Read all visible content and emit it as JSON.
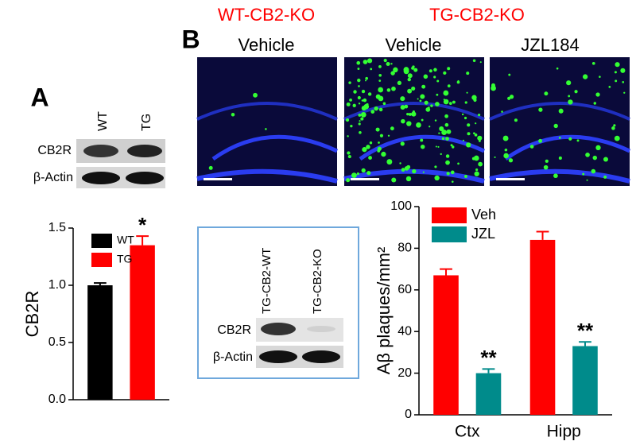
{
  "panels": {
    "a": "A",
    "b": "B"
  },
  "image_labels": {
    "groups": [
      "WT-CB2-KO",
      "TG-CB2-KO"
    ],
    "conditions": [
      "Vehicle",
      "Vehicle",
      "JZL184"
    ]
  },
  "blot_a": {
    "lanes": [
      "WT",
      "TG"
    ],
    "rows": [
      "CB2R",
      "β-Actin"
    ]
  },
  "blot_b": {
    "lanes": [
      "TG-CB2-WT",
      "TG-CB2-KO"
    ],
    "rows": [
      "CB2R",
      "β-Actin"
    ]
  },
  "chart_data": [
    {
      "type": "bar",
      "ylabel": "CB2R",
      "categories": [
        null
      ],
      "series": [
        {
          "name": "WT",
          "color": "#000000",
          "values": [
            1.0
          ],
          "errors": [
            0.02
          ]
        },
        {
          "name": "TG",
          "color": "#ff0000",
          "values": [
            1.35
          ],
          "errors": [
            0.08
          ],
          "annotations": [
            "*"
          ]
        }
      ],
      "ylim": [
        0,
        1.5
      ],
      "yticks": [
        {
          "value": 0,
          "label": "0.0"
        },
        {
          "value": 0.5,
          "label": "0.5"
        },
        {
          "value": 1,
          "label": "1.0"
        },
        {
          "value": 1.5,
          "label": "1.5"
        }
      ]
    },
    {
      "type": "bar",
      "ylabel": "Aβ plaques/mm²",
      "categories": [
        "Ctx",
        "Hipp"
      ],
      "series": [
        {
          "name": "Veh",
          "color": "#ff0000",
          "values": [
            67,
            84
          ],
          "errors": [
            3,
            4
          ]
        },
        {
          "name": "JZL",
          "color": "#008b8b",
          "values": [
            20,
            33
          ],
          "errors": [
            2,
            2
          ],
          "annotations": [
            "**",
            "**"
          ]
        }
      ],
      "ylim": [
        0,
        100
      ],
      "yticks": [
        0,
        20,
        40,
        60,
        80,
        100
      ]
    }
  ]
}
